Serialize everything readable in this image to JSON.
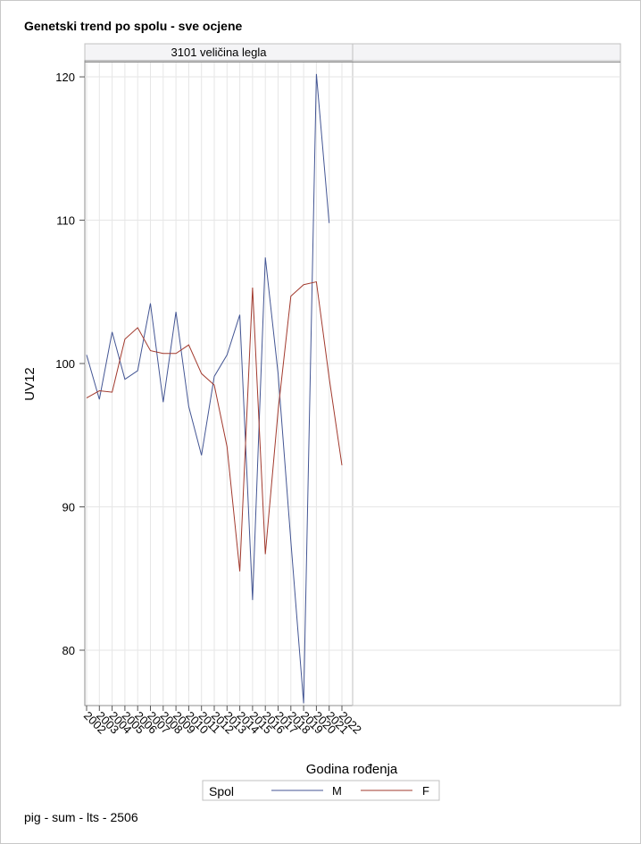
{
  "title": "Genetski trend po spolu - sve ocjene",
  "footer": "pig - sum - lts - 2506",
  "chart_data": {
    "type": "line",
    "panel_label": "3101 veličina legla",
    "xlabel": "Godina rođenja",
    "ylabel": "UV12",
    "x": [
      2002,
      2003,
      2004,
      2005,
      2006,
      2007,
      2008,
      2009,
      2010,
      2011,
      2012,
      2013,
      2014,
      2015,
      2016,
      2017,
      2018,
      2019,
      2020,
      2021,
      2022
    ],
    "x_tick_labels": [
      "2002",
      "2003",
      "2004",
      "2005",
      "2006",
      "2007",
      "2008",
      "2009",
      "2010",
      "2011",
      "2012",
      "2013",
      "2014",
      "2015",
      "2016",
      "2017",
      "2018",
      "2019",
      "2020",
      "2021",
      "2022"
    ],
    "y_ticks": [
      80,
      90,
      100,
      110,
      120
    ],
    "xlim": [
      2002,
      2022
    ],
    "ylim": [
      76.2,
      121.0
    ],
    "grid": true,
    "legend": {
      "title": "Spol",
      "position": "bottom"
    },
    "series": [
      {
        "name": "M",
        "color": "#445694",
        "values": [
          100.6,
          97.5,
          102.2,
          98.9,
          99.5,
          104.2,
          97.3,
          103.6,
          97.0,
          93.6,
          99.1,
          100.6,
          103.4,
          83.5,
          107.4,
          99.3,
          87.6,
          76.3,
          120.2,
          109.8,
          null
        ]
      },
      {
        "name": "F",
        "color": "#a23a2e",
        "values": [
          97.6,
          98.1,
          98.0,
          101.7,
          102.5,
          100.9,
          100.7,
          100.7,
          101.3,
          99.3,
          98.5,
          94.2,
          85.5,
          105.3,
          86.7,
          96.7,
          104.7,
          105.5,
          105.7,
          99.0,
          92.9
        ]
      }
    ]
  }
}
